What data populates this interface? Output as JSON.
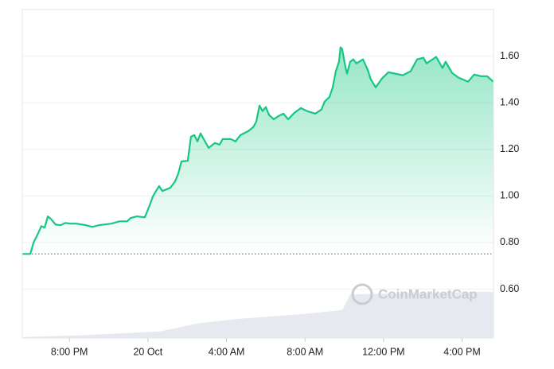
{
  "chart_data": {
    "type": "line",
    "watermark": "CoinMarketCap",
    "xlim": [
      17.6,
      41.6
    ],
    "xticks": [
      {
        "value": 20,
        "label": "8:00 PM"
      },
      {
        "value": 24,
        "label": "20 Oct"
      },
      {
        "value": 28,
        "label": "4:00 AM"
      },
      {
        "value": 32,
        "label": "8:00 AM"
      },
      {
        "value": 36,
        "label": "12:00 PM"
      },
      {
        "value": 40,
        "label": "4:00 PM"
      }
    ],
    "ylim": [
      0.39,
      1.8
    ],
    "yticks": [
      {
        "value": 0.6,
        "label": "0.60"
      },
      {
        "value": 0.8,
        "label": "0.80"
      },
      {
        "value": 1.0,
        "label": "1.00"
      },
      {
        "value": 1.2,
        "label": "1.20"
      },
      {
        "value": 1.4,
        "label": "1.40"
      },
      {
        "value": 1.6,
        "label": "1.60"
      }
    ],
    "y2lim": [
      0,
      100
    ],
    "grid": true,
    "reference_value": 0.751,
    "series": [
      {
        "name": "Price",
        "color": "#16c784",
        "x": [
          17.6,
          18.01,
          18.17,
          18.41,
          18.57,
          18.74,
          18.9,
          19.06,
          19.3,
          19.55,
          19.79,
          20.03,
          20.36,
          20.84,
          21.17,
          21.49,
          22.14,
          22.55,
          22.95,
          23.11,
          23.44,
          23.84,
          24.09,
          24.25,
          24.41,
          24.57,
          24.73,
          25.14,
          25.38,
          25.55,
          25.71,
          26.03,
          26.19,
          26.36,
          26.52,
          26.68,
          26.84,
          27.09,
          27.41,
          27.65,
          27.81,
          28.22,
          28.46,
          28.71,
          29.11,
          29.36,
          29.52,
          29.68,
          29.84,
          30.0,
          30.17,
          30.41,
          30.65,
          30.9,
          31.14,
          31.46,
          31.79,
          32.11,
          32.52,
          32.84,
          33.0,
          33.25,
          33.41,
          33.57,
          33.73,
          33.81,
          33.89,
          34.06,
          34.14,
          34.3,
          34.46,
          34.62,
          34.95,
          35.19,
          35.35,
          35.6,
          35.92,
          36.25,
          36.57,
          36.98,
          37.38,
          37.71,
          38.03,
          38.19,
          38.68,
          39.0,
          39.16,
          39.49,
          39.81,
          40.3,
          40.62,
          40.95,
          41.27,
          41.6
        ],
        "values": [
          0.751,
          0.751,
          0.799,
          0.84,
          0.87,
          0.864,
          0.912,
          0.901,
          0.877,
          0.874,
          0.884,
          0.881,
          0.881,
          0.874,
          0.867,
          0.874,
          0.881,
          0.891,
          0.891,
          0.905,
          0.912,
          0.908,
          0.96,
          0.997,
          1.021,
          1.042,
          1.021,
          1.035,
          1.062,
          1.097,
          1.148,
          1.151,
          1.254,
          1.261,
          1.234,
          1.268,
          1.244,
          1.206,
          1.227,
          1.22,
          1.244,
          1.244,
          1.234,
          1.261,
          1.278,
          1.295,
          1.319,
          1.388,
          1.364,
          1.381,
          1.347,
          1.329,
          1.343,
          1.353,
          1.329,
          1.357,
          1.377,
          1.364,
          1.353,
          1.371,
          1.405,
          1.425,
          1.466,
          1.535,
          1.576,
          1.638,
          1.631,
          1.552,
          1.525,
          1.576,
          1.586,
          1.569,
          1.586,
          1.542,
          1.501,
          1.466,
          1.504,
          1.531,
          1.525,
          1.518,
          1.535,
          1.586,
          1.593,
          1.569,
          1.597,
          1.549,
          1.576,
          1.528,
          1.508,
          1.49,
          1.521,
          1.514,
          1.514,
          1.49
        ]
      },
      {
        "name": "Volume",
        "color": "#e6e9ef",
        "axis": "y2",
        "x": [
          17.6,
          20.5,
          24.6,
          26.6,
          28.6,
          31.9,
          33.9,
          34.3,
          41.6
        ],
        "values": [
          0.3,
          0.8,
          2,
          4.5,
          5.8,
          7.3,
          8.5,
          13.3,
          14.1
        ]
      }
    ]
  }
}
